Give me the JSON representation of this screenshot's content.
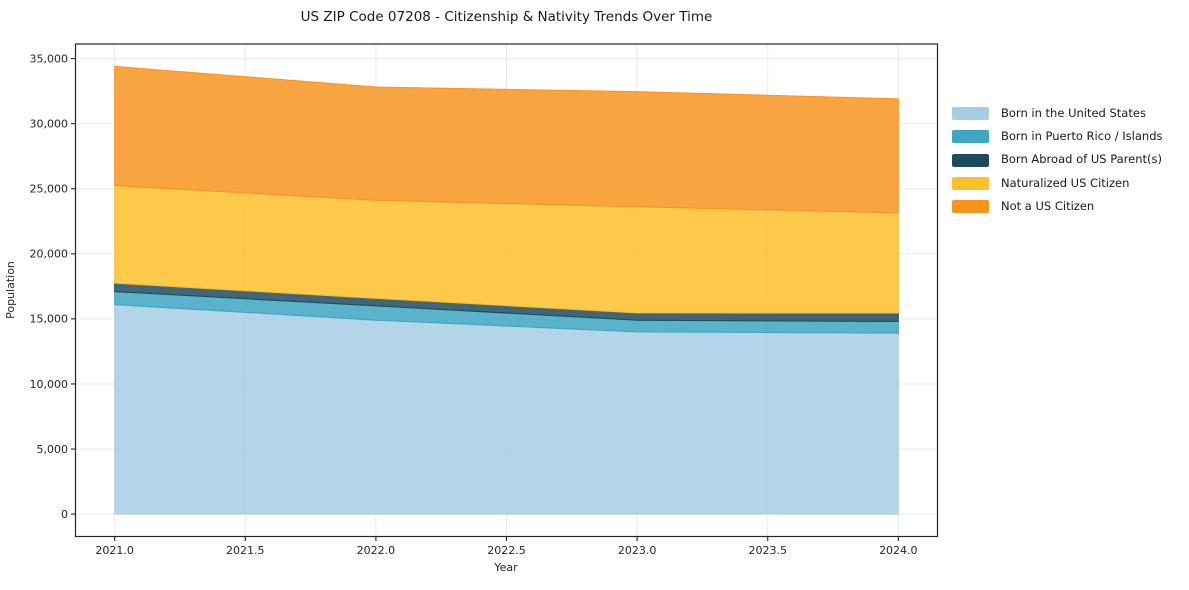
{
  "chart_data": {
    "type": "area",
    "stacked": true,
    "title": "US ZIP Code 07208 - Citizenship & Nativity Trends Over Time",
    "xlabel": "Year",
    "ylabel": "Population",
    "x": [
      2021,
      2022,
      2023,
      2024
    ],
    "series": [
      {
        "name": "Born in the United States",
        "color": "#A6CEE3",
        "values": [
          16100,
          14900,
          14000,
          13900
        ]
      },
      {
        "name": "Born in Puerto Rico / Islands",
        "color": "#3EA6C2",
        "values": [
          1000,
          1100,
          900,
          900
        ]
      },
      {
        "name": "Born Abroad of US Parent(s)",
        "color": "#1E4B5F",
        "values": [
          650,
          570,
          560,
          650
        ]
      },
      {
        "name": "Naturalized US Citizen",
        "color": "#FCC02B",
        "values": [
          7500,
          7550,
          8150,
          7700
        ]
      },
      {
        "name": "Not a US Citizen",
        "color": "#F7941E",
        "values": [
          9150,
          8700,
          8850,
          8750
        ]
      }
    ],
    "totals": [
      34400,
      32820,
      32460,
      31900
    ],
    "xlim": [
      2020.85,
      2024.15
    ],
    "ylim": [
      -1720,
      36120
    ],
    "x_ticks": [
      2021.0,
      2021.5,
      2022.0,
      2022.5,
      2023.0,
      2023.5,
      2024.0
    ],
    "x_tick_labels": [
      "2021.0",
      "2021.5",
      "2022.0",
      "2022.5",
      "2023.0",
      "2023.5",
      "2024.0"
    ],
    "y_ticks": [
      0,
      5000,
      10000,
      15000,
      20000,
      25000,
      30000,
      35000
    ],
    "y_tick_labels": [
      "0",
      "5,000",
      "10,000",
      "15,000",
      "20,000",
      "25,000",
      "30,000",
      "35,000"
    ],
    "grid": true,
    "grid_color": "#e9e9f0",
    "frame_color": "#262626",
    "fill_opacity": 0.85,
    "legend_position": "right"
  }
}
